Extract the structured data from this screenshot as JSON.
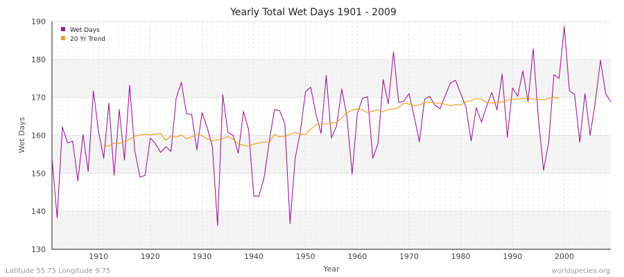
{
  "colors": {
    "wet_days": "#9a1a9a",
    "trend": "#f0a020",
    "band_light": "#f4f4f4",
    "band_white": "#ffffff",
    "axis": "#444444"
  },
  "footer": {
    "location": "Latitude 55.75 Longitude 9.75",
    "source": "worldspecies.org"
  },
  "chart_data": {
    "type": "line",
    "title": "Yearly Total Wet Days 1901 - 2009",
    "xlabel": "Year",
    "ylabel": "Wet Days",
    "xlim": [
      1901,
      2009
    ],
    "ylim": [
      130,
      190
    ],
    "x_ticks": [
      1910,
      1920,
      1930,
      1940,
      1950,
      1960,
      1970,
      1980,
      1990,
      2000
    ],
    "y_ticks": [
      130,
      140,
      150,
      160,
      170,
      180,
      190
    ],
    "grid": true,
    "legend_position": "top-left",
    "series": [
      {
        "name": "Wet Days",
        "x_start": 1901,
        "values": [
          154.0,
          138.3,
          162.2,
          158.0,
          158.5,
          148.0,
          160.2,
          150.5,
          171.7,
          161.0,
          154.0,
          168.5,
          149.5,
          166.8,
          153.5,
          173.2,
          156.0,
          149.0,
          149.5,
          159.3,
          157.8,
          155.5,
          157.0,
          155.8,
          169.8,
          174.0,
          165.7,
          165.5,
          156.2,
          166.0,
          162.0,
          157.0,
          136.3,
          170.7,
          160.8,
          160.0,
          155.3,
          166.3,
          161.5,
          144.0,
          144.0,
          149.0,
          158.5,
          166.8,
          166.5,
          163.0,
          136.8,
          154.0,
          161.0,
          171.5,
          172.7,
          165.7,
          160.5,
          175.8,
          159.3,
          162.5,
          172.2,
          165.0,
          149.8,
          165.7,
          169.7,
          170.2,
          154.0,
          157.8,
          174.7,
          168.3,
          182.0,
          168.7,
          169.0,
          171.0,
          165.0,
          158.3,
          169.5,
          170.3,
          168.0,
          167.0,
          170.5,
          173.8,
          174.5,
          171.0,
          167.5,
          158.5,
          167.3,
          163.5,
          167.7,
          171.3,
          166.7,
          176.2,
          159.5,
          172.5,
          170.3,
          177.0,
          168.8,
          182.8,
          164.5,
          150.8,
          158.2,
          176.0,
          175.0,
          188.7,
          171.7,
          170.8,
          158.2,
          171.0,
          160.0,
          168.8,
          179.8,
          171.0,
          168.8
        ]
      },
      {
        "name": "20 Yr Trend",
        "x_start": 1911,
        "values": [
          157.3,
          157.2,
          158.0,
          157.9,
          158.4,
          159.0,
          159.8,
          160.1,
          160.3,
          160.1,
          160.3,
          160.5,
          158.7,
          159.9,
          159.5,
          160.1,
          159.1,
          159.6,
          160.3,
          159.9,
          159.1,
          158.6,
          158.8,
          159.2,
          159.7,
          158.9,
          157.8,
          157.4,
          157.1,
          157.7,
          158.0,
          158.3,
          158.2,
          160.3,
          159.6,
          159.8,
          160.2,
          160.8,
          160.2,
          160.3,
          161.6,
          162.8,
          163.0,
          163.0,
          163.3,
          163.4,
          164.6,
          166.0,
          166.6,
          167.0,
          166.7,
          166.0,
          166.4,
          166.7,
          166.2,
          166.8,
          167.0,
          167.3,
          168.5,
          168.3,
          167.8,
          168.0,
          168.7,
          168.7,
          168.5,
          168.5,
          168.2,
          167.8,
          168.1,
          168.0,
          168.9,
          169.2,
          169.7,
          169.5,
          168.7,
          168.5,
          168.7,
          168.8,
          169.3,
          169.5,
          169.6,
          169.7,
          169.8,
          169.5,
          169.5,
          169.3,
          169.7,
          170.1,
          169.8
        ]
      }
    ]
  }
}
